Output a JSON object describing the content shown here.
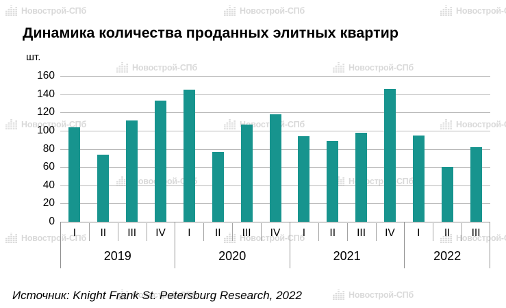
{
  "title": "Динамика количества проданных элитных квартир",
  "source": "Источник: Knight Frank St. Petersburg Research, 2022",
  "watermark_label": "Новострой-СПб",
  "chart_data": {
    "type": "bar",
    "title": "Динамика количества проданных элитных квартир",
    "xlabel": "",
    "ylabel": "шт.",
    "ylim": [
      0,
      160
    ],
    "yticks": [
      0,
      20,
      40,
      60,
      80,
      100,
      120,
      140,
      160
    ],
    "grid": "horizontal",
    "legend": "none",
    "bar_color": "#17948e",
    "groups": [
      {
        "year": "2019",
        "quarters": [
          "I",
          "II",
          "III",
          "IV"
        ],
        "values": [
          104,
          74,
          111,
          133
        ]
      },
      {
        "year": "2020",
        "quarters": [
          "I",
          "II",
          "III",
          "IV"
        ],
        "values": [
          145,
          77,
          107,
          118
        ]
      },
      {
        "year": "2021",
        "quarters": [
          "I",
          "II",
          "III",
          "IV"
        ],
        "values": [
          94,
          89,
          98,
          146
        ]
      },
      {
        "year": "2022",
        "quarters": [
          "I",
          "II",
          "III"
        ],
        "values": [
          95,
          60,
          82
        ]
      }
    ]
  }
}
